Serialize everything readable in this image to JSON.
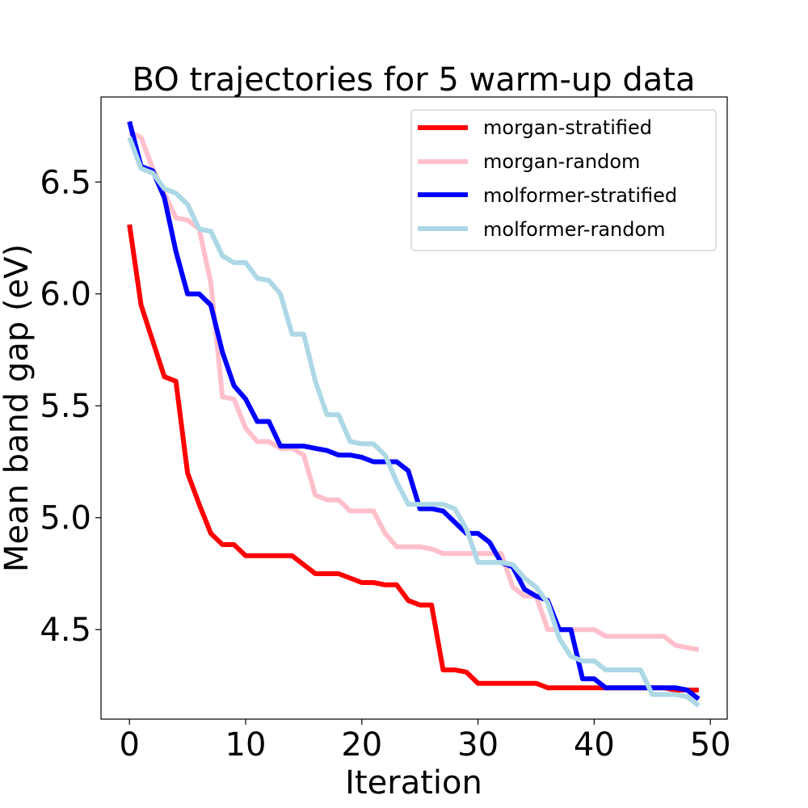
{
  "chart_data": {
    "type": "line",
    "title": "BO trajectories for 5 warm-up data",
    "xlabel": "Iteration",
    "ylabel": "Mean band gap (eV)",
    "xlim": [
      -2.45,
      51.45
    ],
    "ylim": [
      4.1,
      6.88
    ],
    "xticks": [
      0,
      10,
      20,
      30,
      40,
      50
    ],
    "yticks": [
      4.5,
      5.0,
      5.5,
      6.0,
      6.5
    ],
    "xtick_labels": [
      "0",
      "10",
      "20",
      "30",
      "40",
      "50"
    ],
    "ytick_labels": [
      "4.5",
      "5.0",
      "5.5",
      "6.0",
      "6.5"
    ],
    "grid": false,
    "legend_position": "upper right",
    "series": [
      {
        "name": "morgan-stratified",
        "color": "#ff0000",
        "x": [
          0,
          1,
          2,
          3,
          4,
          5,
          6,
          7,
          8,
          9,
          10,
          11,
          12,
          13,
          14,
          15,
          16,
          17,
          18,
          19,
          20,
          21,
          22,
          23,
          24,
          25,
          26,
          27,
          28,
          29,
          30,
          31,
          32,
          33,
          34,
          35,
          36,
          37,
          38,
          39,
          40,
          41,
          42,
          43,
          44,
          45,
          46,
          47,
          48,
          49
        ],
        "y": [
          6.31,
          5.95,
          5.79,
          5.63,
          5.61,
          5.2,
          5.06,
          4.93,
          4.88,
          4.88,
          4.83,
          4.83,
          4.83,
          4.83,
          4.83,
          4.79,
          4.75,
          4.75,
          4.75,
          4.73,
          4.71,
          4.71,
          4.7,
          4.7,
          4.63,
          4.61,
          4.61,
          4.32,
          4.32,
          4.31,
          4.26,
          4.26,
          4.26,
          4.26,
          4.26,
          4.26,
          4.24,
          4.24,
          4.24,
          4.24,
          4.24,
          4.24,
          4.24,
          4.24,
          4.24,
          4.24,
          4.24,
          4.23,
          4.23,
          4.23
        ]
      },
      {
        "name": "morgan-random",
        "color": "#ffc0cb",
        "x": [
          0,
          1,
          2,
          3,
          4,
          5,
          6,
          7,
          8,
          9,
          10,
          11,
          12,
          13,
          14,
          15,
          16,
          17,
          18,
          19,
          20,
          21,
          22,
          23,
          24,
          25,
          26,
          27,
          28,
          29,
          30,
          31,
          32,
          33,
          34,
          35,
          36,
          37,
          38,
          39,
          40,
          41,
          42,
          43,
          44,
          45,
          46,
          47,
          48,
          49
        ],
        "y": [
          6.72,
          6.7,
          6.56,
          6.45,
          6.34,
          6.33,
          6.29,
          6.05,
          5.54,
          5.53,
          5.4,
          5.34,
          5.34,
          5.31,
          5.31,
          5.28,
          5.1,
          5.08,
          5.08,
          5.03,
          5.03,
          5.03,
          4.93,
          4.87,
          4.87,
          4.87,
          4.86,
          4.84,
          4.84,
          4.84,
          4.84,
          4.84,
          4.84,
          4.69,
          4.65,
          4.65,
          4.5,
          4.5,
          4.5,
          4.5,
          4.5,
          4.47,
          4.47,
          4.47,
          4.47,
          4.47,
          4.47,
          4.43,
          4.42,
          4.41
        ]
      },
      {
        "name": "molformer-stratified",
        "color": "#0000ff",
        "x": [
          0,
          1,
          2,
          3,
          4,
          5,
          6,
          7,
          8,
          9,
          10,
          11,
          12,
          13,
          14,
          15,
          16,
          17,
          18,
          19,
          20,
          21,
          22,
          23,
          24,
          25,
          26,
          27,
          28,
          29,
          30,
          31,
          32,
          33,
          34,
          35,
          36,
          37,
          38,
          39,
          40,
          41,
          42,
          43,
          44,
          45,
          46,
          47,
          48,
          49
        ],
        "y": [
          6.77,
          6.57,
          6.55,
          6.43,
          6.19,
          6.0,
          6.0,
          5.95,
          5.74,
          5.59,
          5.53,
          5.43,
          5.43,
          5.32,
          5.32,
          5.32,
          5.31,
          5.3,
          5.28,
          5.28,
          5.27,
          5.25,
          5.25,
          5.25,
          5.21,
          5.04,
          5.04,
          5.03,
          4.98,
          4.93,
          4.93,
          4.89,
          4.8,
          4.78,
          4.68,
          4.65,
          4.63,
          4.5,
          4.5,
          4.28,
          4.28,
          4.24,
          4.24,
          4.24,
          4.24,
          4.24,
          4.24,
          4.24,
          4.23,
          4.19
        ]
      },
      {
        "name": "molformer-random",
        "color": "#add8e6",
        "x": [
          0,
          1,
          2,
          3,
          4,
          5,
          6,
          7,
          8,
          9,
          10,
          11,
          12,
          13,
          14,
          15,
          16,
          17,
          18,
          19,
          20,
          21,
          22,
          23,
          24,
          25,
          26,
          27,
          28,
          29,
          30,
          31,
          32,
          33,
          34,
          35,
          36,
          37,
          38,
          39,
          40,
          41,
          42,
          43,
          44,
          45,
          46,
          47,
          48,
          49
        ],
        "y": [
          6.7,
          6.56,
          6.54,
          6.47,
          6.45,
          6.4,
          6.29,
          6.28,
          6.17,
          6.14,
          6.14,
          6.07,
          6.06,
          6.0,
          5.82,
          5.82,
          5.61,
          5.46,
          5.46,
          5.34,
          5.33,
          5.33,
          5.28,
          5.16,
          5.06,
          5.06,
          5.06,
          5.06,
          5.04,
          4.95,
          4.8,
          4.8,
          4.8,
          4.79,
          4.73,
          4.69,
          4.62,
          4.46,
          4.38,
          4.36,
          4.36,
          4.32,
          4.32,
          4.32,
          4.32,
          4.21,
          4.21,
          4.21,
          4.2,
          4.16
        ]
      }
    ]
  }
}
